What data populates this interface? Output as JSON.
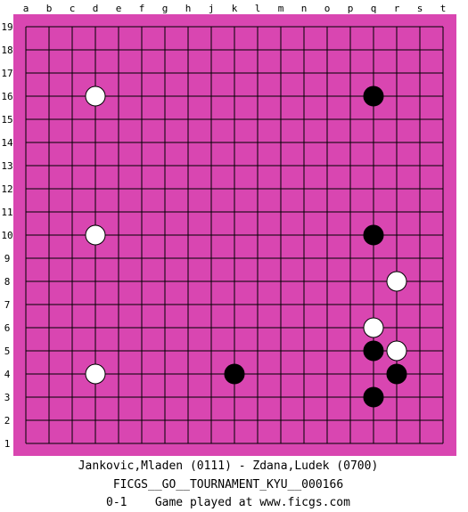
{
  "board": {
    "size": 19,
    "colors": {
      "frame": "#d946b1",
      "grid": "#000000",
      "black_stone": "#000000",
      "white_stone": "#ffffff"
    },
    "column_labels": [
      "a",
      "b",
      "c",
      "d",
      "e",
      "f",
      "g",
      "h",
      "j",
      "k",
      "l",
      "m",
      "n",
      "o",
      "p",
      "q",
      "r",
      "s",
      "t"
    ],
    "row_labels": [
      "19",
      "18",
      "17",
      "16",
      "15",
      "14",
      "13",
      "12",
      "11",
      "10",
      "9",
      "8",
      "7",
      "6",
      "5",
      "4",
      "3",
      "2",
      "1"
    ],
    "stones": [
      {
        "col": "d",
        "row": 16,
        "color": "white"
      },
      {
        "col": "q",
        "row": 16,
        "color": "black"
      },
      {
        "col": "d",
        "row": 10,
        "color": "white"
      },
      {
        "col": "q",
        "row": 10,
        "color": "black"
      },
      {
        "col": "r",
        "row": 8,
        "color": "white"
      },
      {
        "col": "q",
        "row": 6,
        "color": "white"
      },
      {
        "col": "q",
        "row": 5,
        "color": "black"
      },
      {
        "col": "r",
        "row": 5,
        "color": "white"
      },
      {
        "col": "d",
        "row": 4,
        "color": "white"
      },
      {
        "col": "k",
        "row": 4,
        "color": "black"
      },
      {
        "col": "r",
        "row": 4,
        "color": "black"
      },
      {
        "col": "q",
        "row": 3,
        "color": "black"
      }
    ]
  },
  "caption": {
    "players": "Jankovic,Mladen (0111) - Zdana,Ludek (0700)",
    "tournament": "FICGS__GO__TOURNAMENT_KYU__000166",
    "result_line": "0-1    Game played at www.ficgs.com"
  }
}
